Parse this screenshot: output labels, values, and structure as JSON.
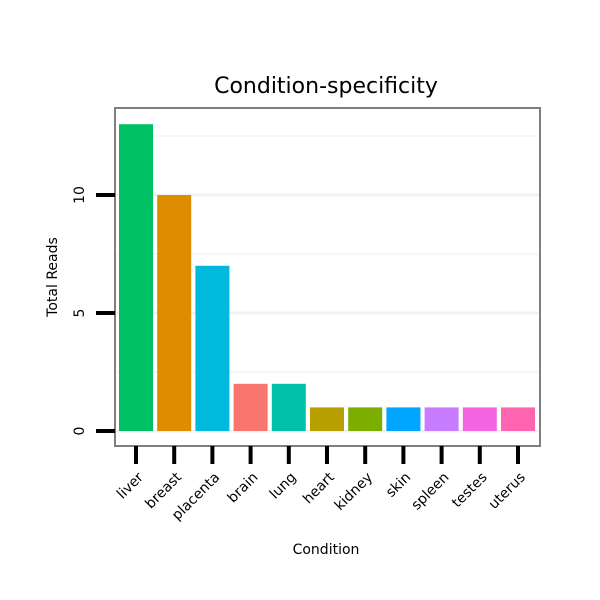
{
  "chart_data": {
    "type": "bar",
    "title": "Condition-specificity",
    "xlabel": "Condition",
    "ylabel": "Total Reads",
    "categories": [
      "liver",
      "breast",
      "placenta",
      "brain",
      "lung",
      "heart",
      "kidney",
      "skin",
      "spleen",
      "testes",
      "uterus"
    ],
    "values": [
      13,
      10,
      7,
      2,
      2,
      1,
      1,
      1,
      1,
      1,
      1
    ],
    "colors": [
      "#00C064",
      "#DE8C00",
      "#00BADE",
      "#F8766D",
      "#00C1A9",
      "#B79F00",
      "#7CAE00",
      "#00A5FF",
      "#C77CFF",
      "#F564E3",
      "#FF64B0"
    ],
    "yticks": [
      0,
      5,
      10
    ],
    "ylim": [
      -0.6,
      13.6
    ],
    "grid": true,
    "legend": "none"
  }
}
